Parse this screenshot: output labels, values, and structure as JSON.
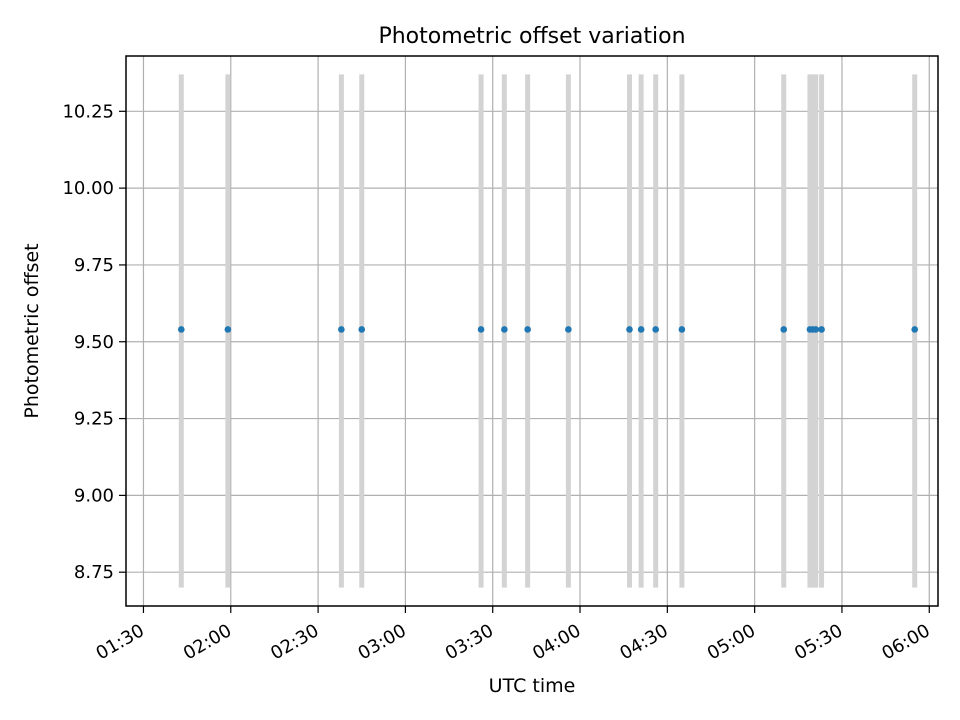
{
  "chart_data": {
    "type": "scatter",
    "title": "Photometric offset variation",
    "xlabel": "UTC time",
    "ylabel": "Photometric offset",
    "x_tick_labels": [
      "01:30",
      "02:00",
      "02:30",
      "03:00",
      "03:30",
      "04:00",
      "04:30",
      "05:00",
      "05:30",
      "06:00"
    ],
    "y_tick_labels": [
      "8.75",
      "9.00",
      "9.25",
      "9.50",
      "9.75",
      "10.00",
      "10.25"
    ],
    "xlim": [
      "01:24",
      "06:03"
    ],
    "ylim": [
      8.64,
      10.43
    ],
    "grid": true,
    "x": [
      "01:43",
      "01:59",
      "02:38",
      "02:45",
      "03:26",
      "03:34",
      "03:42",
      "03:56",
      "04:17",
      "04:21",
      "04:26",
      "04:35",
      "05:10",
      "05:19",
      "05:20",
      "05:21",
      "05:23",
      "05:55"
    ],
    "y": [
      9.54,
      9.54,
      9.54,
      9.54,
      9.54,
      9.54,
      9.54,
      9.54,
      9.54,
      9.54,
      9.54,
      9.54,
      9.54,
      9.54,
      9.54,
      9.54,
      9.54,
      9.54
    ],
    "band_range": [
      8.7,
      10.37
    ],
    "colors": {
      "point": "#1f77b4",
      "band": "#d3d3d3",
      "grid": "#b0b0b0"
    }
  }
}
